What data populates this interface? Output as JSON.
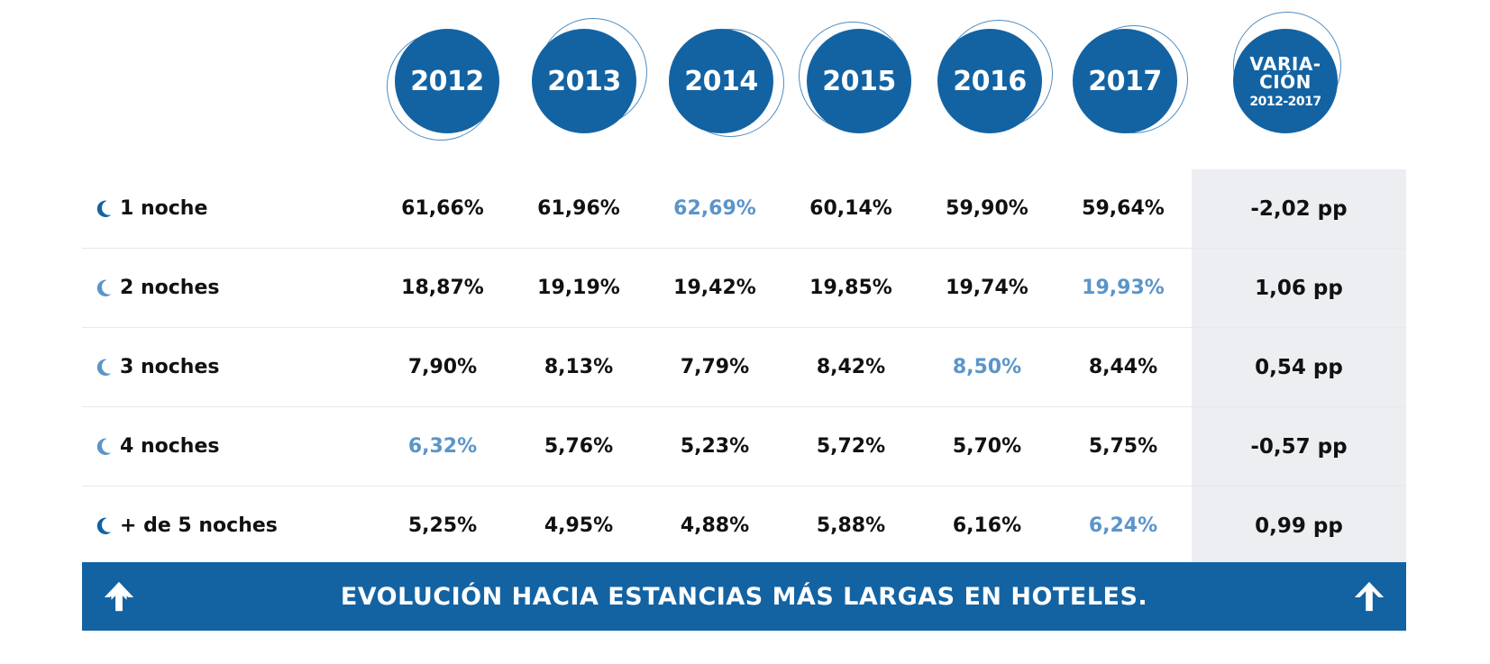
{
  "chart_data": {
    "type": "table",
    "columns": [
      "2012",
      "2013",
      "2014",
      "2015",
      "2016",
      "2017"
    ],
    "variation_header": {
      "line1": "VARIA-",
      "line2": "CIÓN",
      "line3": "2012-2017"
    },
    "rows": [
      {
        "label": "1 noche",
        "values": [
          "61,66%",
          "61,96%",
          "62,69%",
          "60,14%",
          "59,90%",
          "59,64%"
        ],
        "highlight_index": 2,
        "variation": "-2,02 pp"
      },
      {
        "label": "2 noches",
        "values": [
          "18,87%",
          "19,19%",
          "19,42%",
          "19,85%",
          "19,74%",
          "19,93%"
        ],
        "highlight_index": 5,
        "variation": "1,06 pp"
      },
      {
        "label": "3 noches",
        "values": [
          "7,90%",
          "8,13%",
          "7,79%",
          "8,42%",
          "8,50%",
          "8,44%"
        ],
        "highlight_index": 4,
        "variation": "0,54 pp"
      },
      {
        "label": "4 noches",
        "values": [
          "6,32%",
          "5,76%",
          "5,23%",
          "5,72%",
          "5,70%",
          "5,75%"
        ],
        "highlight_index": 0,
        "variation": "-0,57 pp"
      },
      {
        "label": "+ de 5 noches",
        "values": [
          "5,25%",
          "4,95%",
          "4,88%",
          "5,88%",
          "6,16%",
          "6,24%"
        ],
        "highlight_index": 5,
        "variation": "0,99 pp"
      }
    ],
    "colors": {
      "primary": "#1363a3",
      "highlight": "#5b95c9",
      "moon_dark": "#1363a3",
      "moon_light": "#5b95c9",
      "variation_bg": "#eceef1"
    }
  },
  "banner": {
    "text": "EVOLUCIÓN HACIA ESTANCIAS MÁS LARGAS EN HOTELES.",
    "icon": "arrow-up-icon"
  }
}
